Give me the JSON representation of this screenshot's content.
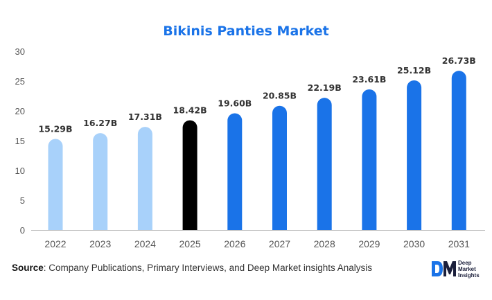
{
  "chart_data": {
    "type": "bar",
    "title": "Bikinis Panties Market",
    "categories": [
      "2022",
      "2023",
      "2024",
      "2025",
      "2026",
      "2027",
      "2028",
      "2029",
      "2030",
      "2031"
    ],
    "values": [
      15.29,
      16.27,
      17.31,
      18.42,
      19.6,
      20.85,
      22.19,
      23.61,
      25.12,
      26.73
    ],
    "data_labels": [
      "15.29B",
      "16.27B",
      "17.31B",
      "18.42B",
      "19.60B",
      "20.85B",
      "22.19B",
      "23.61B",
      "25.12B",
      "26.73B"
    ],
    "bar_colors": [
      "#a8d1fa",
      "#a8d1fa",
      "#a8d1fa",
      "#000000",
      "#1a73e8",
      "#1a73e8",
      "#1a73e8",
      "#1a73e8",
      "#1a73e8",
      "#1a73e8"
    ],
    "ylim": [
      0,
      30
    ],
    "yticks": [
      "0",
      "5",
      "10",
      "15",
      "20",
      "25",
      "30"
    ],
    "xlabel": "",
    "ylabel": "",
    "grid": false,
    "legend": "none"
  },
  "source": {
    "label": "Source",
    "text": ": Company Publications, Primary Interviews, and Deep Market insights Analysis"
  },
  "logo": {
    "mark": "DM",
    "line1": "Deep",
    "line2": "Market",
    "line3": "Insights"
  },
  "colors": {
    "title": "#1a73e8",
    "historical": "#a8d1fa",
    "current": "#000000",
    "forecast": "#1a73e8"
  }
}
